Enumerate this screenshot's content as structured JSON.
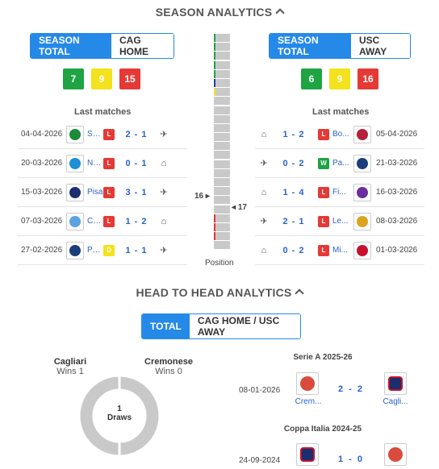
{
  "season": {
    "title": "SEASON ANALYTICS",
    "left": {
      "toggle": [
        "SEASON TOTAL",
        "CAG HOME"
      ],
      "counts": {
        "w": "7",
        "d": "9",
        "l": "15"
      },
      "last_title": "Last matches",
      "matches": [
        {
          "date": "04-04-2026",
          "team": "Sa...",
          "res": "L",
          "score": "2 - 1",
          "venue": "plane-icon",
          "crest": "#1c8a3b"
        },
        {
          "date": "20-03-2026",
          "team": "Na...",
          "res": "L",
          "score": "0 - 1",
          "venue": "home-icon",
          "crest": "#1e8fd8"
        },
        {
          "date": "15-03-2026",
          "team": "Pisa",
          "res": "L",
          "score": "3 - 1",
          "venue": "plane-icon",
          "crest": "#1b2f6e"
        },
        {
          "date": "07-03-2026",
          "team": "Co...",
          "res": "L",
          "score": "1 - 2",
          "venue": "home-icon",
          "crest": "#5aa3e0"
        },
        {
          "date": "27-02-2026",
          "team": "Pa...",
          "res": "D",
          "score": "1 - 1",
          "venue": "plane-icon",
          "crest": "#1b3e7a"
        }
      ]
    },
    "right": {
      "toggle": [
        "SEASON TOTAL",
        "USC AWAY"
      ],
      "counts": {
        "w": "6",
        "d": "9",
        "l": "16"
      },
      "last_title": "Last matches",
      "matches": [
        {
          "date": "05-04-2026",
          "team": "Bo...",
          "res": "L",
          "score": "1 - 2",
          "venue": "home-icon",
          "crest": "#b5213a"
        },
        {
          "date": "21-03-2026",
          "team": "Pa...",
          "res": "W",
          "score": "0 - 2",
          "venue": "plane-icon",
          "crest": "#1b3e7a"
        },
        {
          "date": "16-03-2026",
          "team": "Fi...",
          "res": "L",
          "score": "1 - 4",
          "venue": "home-icon",
          "crest": "#6a2ea0"
        },
        {
          "date": "08-03-2026",
          "team": "Le...",
          "res": "L",
          "score": "2 - 1",
          "venue": "plane-icon",
          "crest": "#d9a520"
        },
        {
          "date": "01-03-2026",
          "team": "Mi...",
          "res": "L",
          "score": "0 - 2",
          "venue": "home-icon",
          "crest": "#c8102e"
        }
      ]
    },
    "position": {
      "label": "Position",
      "left": "16",
      "right": "17"
    }
  },
  "h2h": {
    "title": "HEAD TO HEAD ANALYTICS",
    "toggle": [
      "TOTAL",
      "CAG HOME / USC AWAY"
    ],
    "home": {
      "name": "Cagliari",
      "wins": "Wins 1"
    },
    "away": {
      "name": "Cremonese",
      "wins": "Wins 0"
    },
    "draws": {
      "count": "1",
      "label": "Draws"
    },
    "matches": [
      {
        "competition": "Serie A 2025-26",
        "date": "08-01-2026",
        "score": "2 - 2",
        "home": "Crem...",
        "away": "Cagli..."
      },
      {
        "competition": "Coppa Italia 2024-25",
        "date": "24-09-2024",
        "score": "1 - 0",
        "home": "",
        "away": ""
      }
    ]
  }
}
